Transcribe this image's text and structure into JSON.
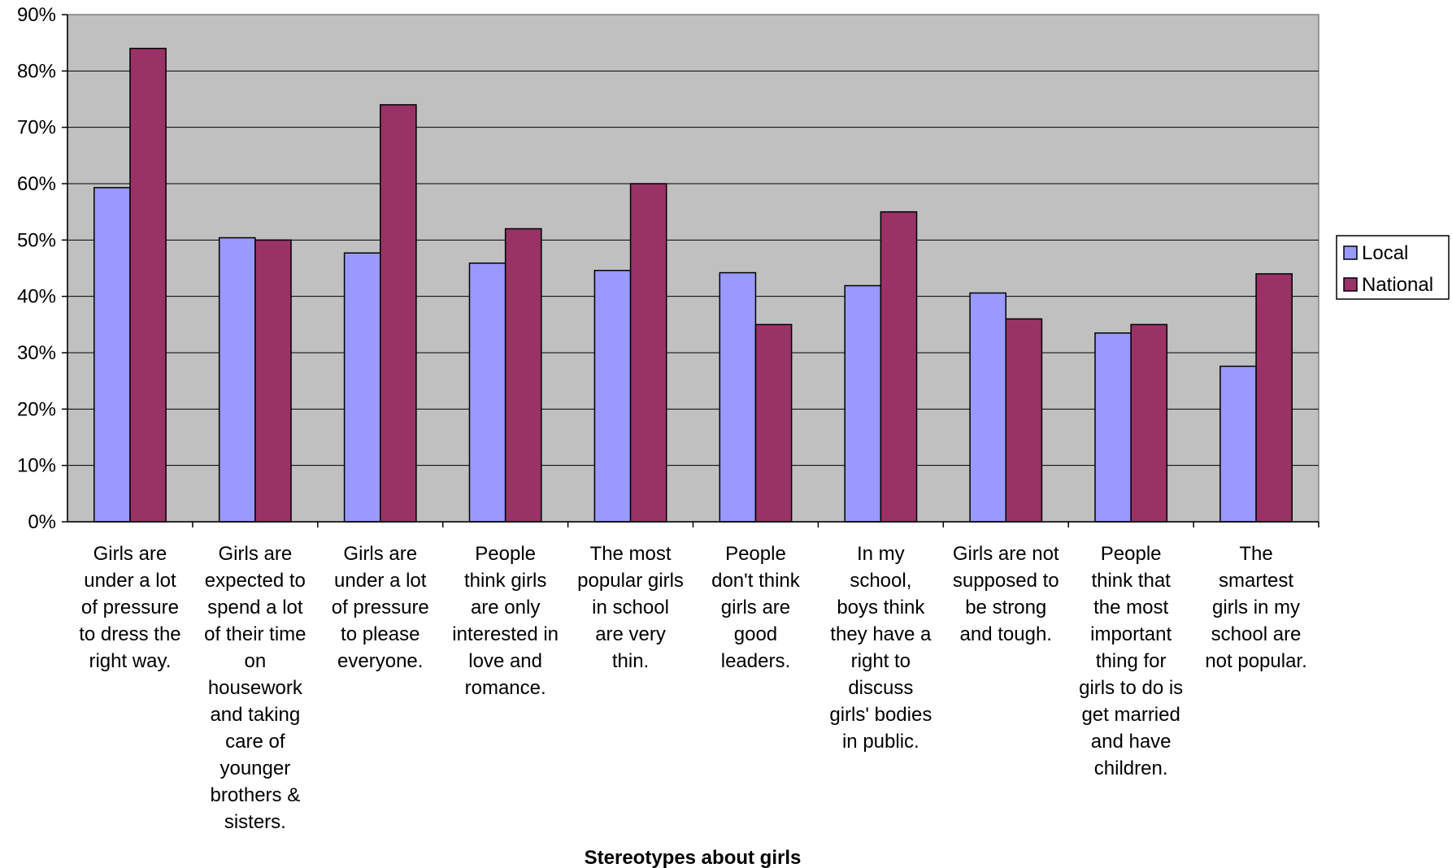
{
  "chart_data": {
    "type": "bar",
    "title": "",
    "xlabel": "Stereotypes about girls",
    "ylabel": "",
    "ylim": [
      0,
      90
    ],
    "ytick_step": 10,
    "ytick_suffix": "%",
    "grid": true,
    "legend_position": "right",
    "plot_background": "#C0C0C0",
    "categories": [
      "Girls are under a lot of pressure to dress the right way.",
      "Girls are expected to spend a lot of their time on housework and taking care of younger brothers & sisters.",
      "Girls are under a lot of pressure to please everyone.",
      "People think girls are only interested in love and romance.",
      "The most popular girls in school are very thin.",
      "People don't think girls are good leaders.",
      "In my school, boys think they have a right to discuss girls' bodies in public.",
      "Girls are not supposed to be strong and tough.",
      "People think that the most important thing for girls to do is get married and have children.",
      "The smartest girls in my school are not popular."
    ],
    "category_lines": [
      [
        "Girls are",
        "under a lot",
        "of pressure",
        "to dress the",
        "right way."
      ],
      [
        "Girls are",
        "expected to",
        "spend a lot",
        "of their time",
        "on",
        "housework",
        "and taking",
        "care of",
        "younger",
        "brothers &",
        "sisters."
      ],
      [
        "Girls are",
        "under a lot",
        "of pressure",
        "to please",
        "everyone."
      ],
      [
        "People",
        "think girls",
        "are only",
        "interested in",
        "love and",
        "romance."
      ],
      [
        "The most",
        "popular girls",
        "in school",
        "are very",
        "thin."
      ],
      [
        "People",
        "don't think",
        "girls are",
        "good",
        "leaders."
      ],
      [
        "In my",
        "school,",
        "boys think",
        "they have a",
        "right to",
        "discuss",
        "girls' bodies",
        "in public."
      ],
      [
        "Girls are not",
        "supposed to",
        "be strong",
        "and tough."
      ],
      [
        "People",
        "think that",
        "the most",
        "important",
        "thing for",
        "girls to do is",
        "get married",
        "and have",
        "children."
      ],
      [
        "The",
        "smartest",
        "girls in my",
        "school are",
        "not popular."
      ]
    ],
    "series": [
      {
        "name": "Local",
        "color": "#9999FF",
        "values": [
          59.3,
          50.4,
          47.7,
          45.9,
          44.6,
          44.2,
          41.9,
          40.6,
          33.5,
          27.6
        ]
      },
      {
        "name": "National",
        "color": "#993366",
        "values": [
          84,
          50,
          74,
          52,
          60,
          35,
          55,
          36,
          35,
          44
        ]
      }
    ]
  }
}
